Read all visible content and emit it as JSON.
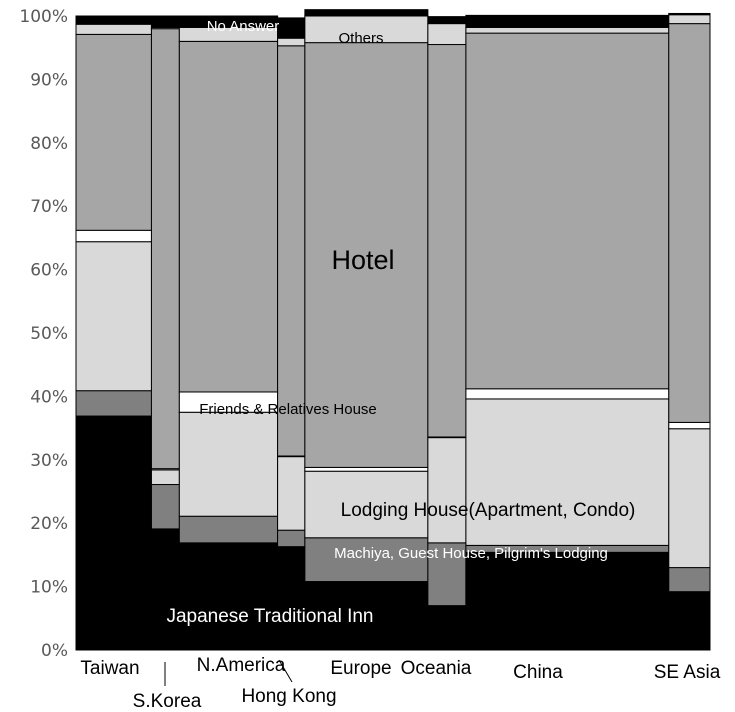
{
  "chart_data": {
    "type": "mosaic",
    "title": "",
    "xlabel": "",
    "ylabel": "",
    "ylim": [
      0,
      100
    ],
    "y_ticks": [
      "0%",
      "10%",
      "20%",
      "30%",
      "40%",
      "50%",
      "60%",
      "70%",
      "80%",
      "90%",
      "100%"
    ],
    "grid": false,
    "legend": "none",
    "categories": [
      "Taiwan",
      "S.Korea",
      "N.America",
      "Hong Kong",
      "Europe",
      "Oceania",
      "China",
      "SE Asia"
    ],
    "column_shares": [
      11.9,
      4.4,
      15.5,
      4.3,
      19.4,
      6.0,
      32.0,
      6.5
    ],
    "series": [
      {
        "name": "Japanese Traditional Inn",
        "color": "#000000",
        "values": [
          36.9,
          19.1,
          16.9,
          16.3,
          10.8,
          7.0,
          15.4,
          9.2
        ]
      },
      {
        "name": "Machiya, Guest House, Pilgrim's Lodging",
        "color": "#808080",
        "values": [
          4.0,
          7.0,
          4.2,
          2.6,
          6.9,
          9.9,
          1.1,
          3.8
        ]
      },
      {
        "name": "Lodging House(Apartment, Condo)",
        "color": "#d9d9d9",
        "values": [
          23.5,
          2.3,
          16.4,
          11.6,
          10.5,
          16.6,
          23.1,
          21.9
        ]
      },
      {
        "name": "Friends & Relatives House",
        "color": "#ffffff",
        "values": [
          1.8,
          0.2,
          3.2,
          0.1,
          0.6,
          0.1,
          1.6,
          1.0
        ]
      },
      {
        "name": "Hotel",
        "color": "#a6a6a6",
        "values": [
          30.9,
          69.4,
          55.3,
          64.7,
          67.0,
          61.9,
          56.1,
          62.9
        ]
      },
      {
        "name": "Others",
        "color": "#d9d9d9",
        "values": [
          1.6,
          0.2,
          2.2,
          1.2,
          4.2,
          3.3,
          0.9,
          1.4
        ]
      },
      {
        "name": "No Answer",
        "color": "#000000",
        "values": [
          1.3,
          1.8,
          1.8,
          3.2,
          1.0,
          1.1,
          1.9,
          0.2
        ]
      }
    ],
    "annotations": [
      {
        "text": "No Answer",
        "color": "#ffffff"
      },
      {
        "text": "Others",
        "color": "#000000"
      },
      {
        "text": "Hotel",
        "color": "#000000"
      },
      {
        "text": "Friends & Relatives House",
        "color": "#000000"
      },
      {
        "text": "Lodging House(Apartment, Condo)",
        "color": "#000000"
      },
      {
        "text": "Machiya, Guest House, Pilgrim's Lodging",
        "color": "#ffffff"
      },
      {
        "text": "Japanese Traditional Inn",
        "color": "#ffffff"
      }
    ]
  }
}
